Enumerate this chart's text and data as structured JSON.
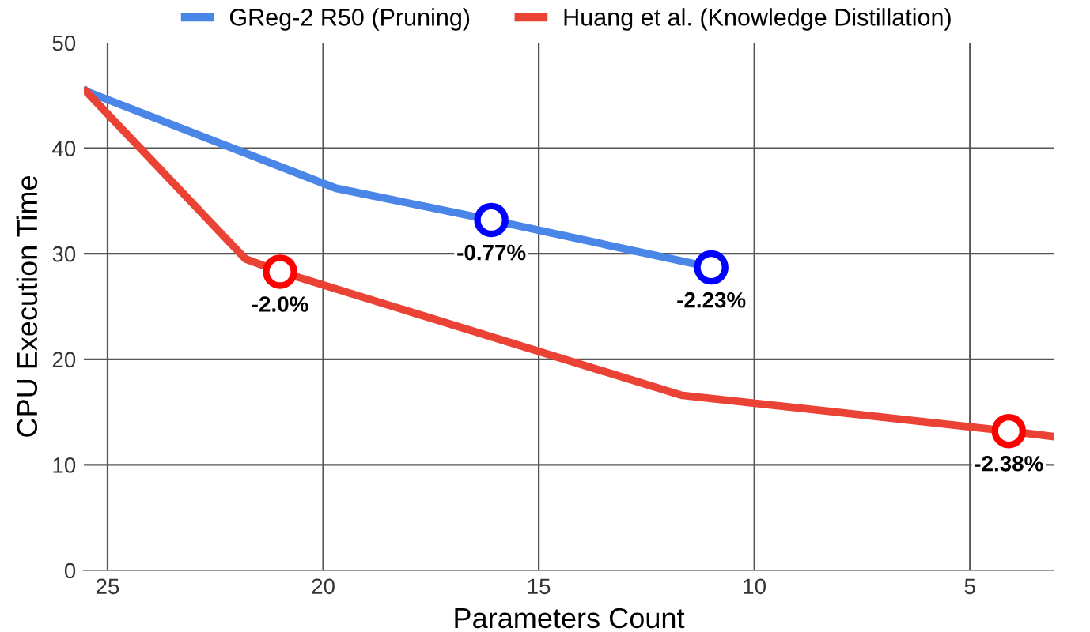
{
  "chart_data": {
    "type": "line",
    "xlabel": "Parameters Count",
    "ylabel": "CPU Execution Time",
    "xlim": [
      25.55,
      3.06
    ],
    "ylim": [
      0,
      50
    ],
    "xticks": [
      25,
      20,
      15,
      10,
      5
    ],
    "yticks": [
      0,
      10,
      20,
      30,
      40,
      50
    ],
    "grid": true,
    "legend": "top",
    "marker": "none",
    "line_style": "solid",
    "series": [
      {
        "name": "GReg-2 R50 (Pruning)",
        "color": "#4a86e8",
        "x": [
          25.5,
          19.7,
          16.1,
          11.0
        ],
        "values": [
          45.4,
          36.2,
          33.2,
          28.7
        ]
      },
      {
        "name": "Huang et al. (Knowledge Distillation)",
        "color": "#ea4335",
        "x": [
          25.5,
          21.8,
          21.0,
          11.7,
          4.1,
          3.1
        ],
        "values": [
          45.4,
          29.5,
          28.3,
          16.6,
          13.2,
          12.7
        ]
      },
      {
        "type": "scatter",
        "marker": "circle",
        "color": "#0000ff",
        "x": [
          16.1,
          11.0
        ],
        "values": [
          33.2,
          28.7
        ]
      },
      {
        "type": "scatter",
        "marker": "circle",
        "color": "#ff0000",
        "x": [
          21.0,
          4.1
        ],
        "values": [
          28.3,
          13.2
        ]
      }
    ],
    "annotations": [
      {
        "text": "-0.77%",
        "x": 16.1,
        "y": 33.2
      },
      {
        "text": "-2.23%",
        "x": 11.0,
        "y": 28.7
      },
      {
        "text": "-2.0%",
        "x": 21.0,
        "y": 28.3
      },
      {
        "text": "-2.38%",
        "x": 4.1,
        "y": 13.2
      }
    ]
  }
}
